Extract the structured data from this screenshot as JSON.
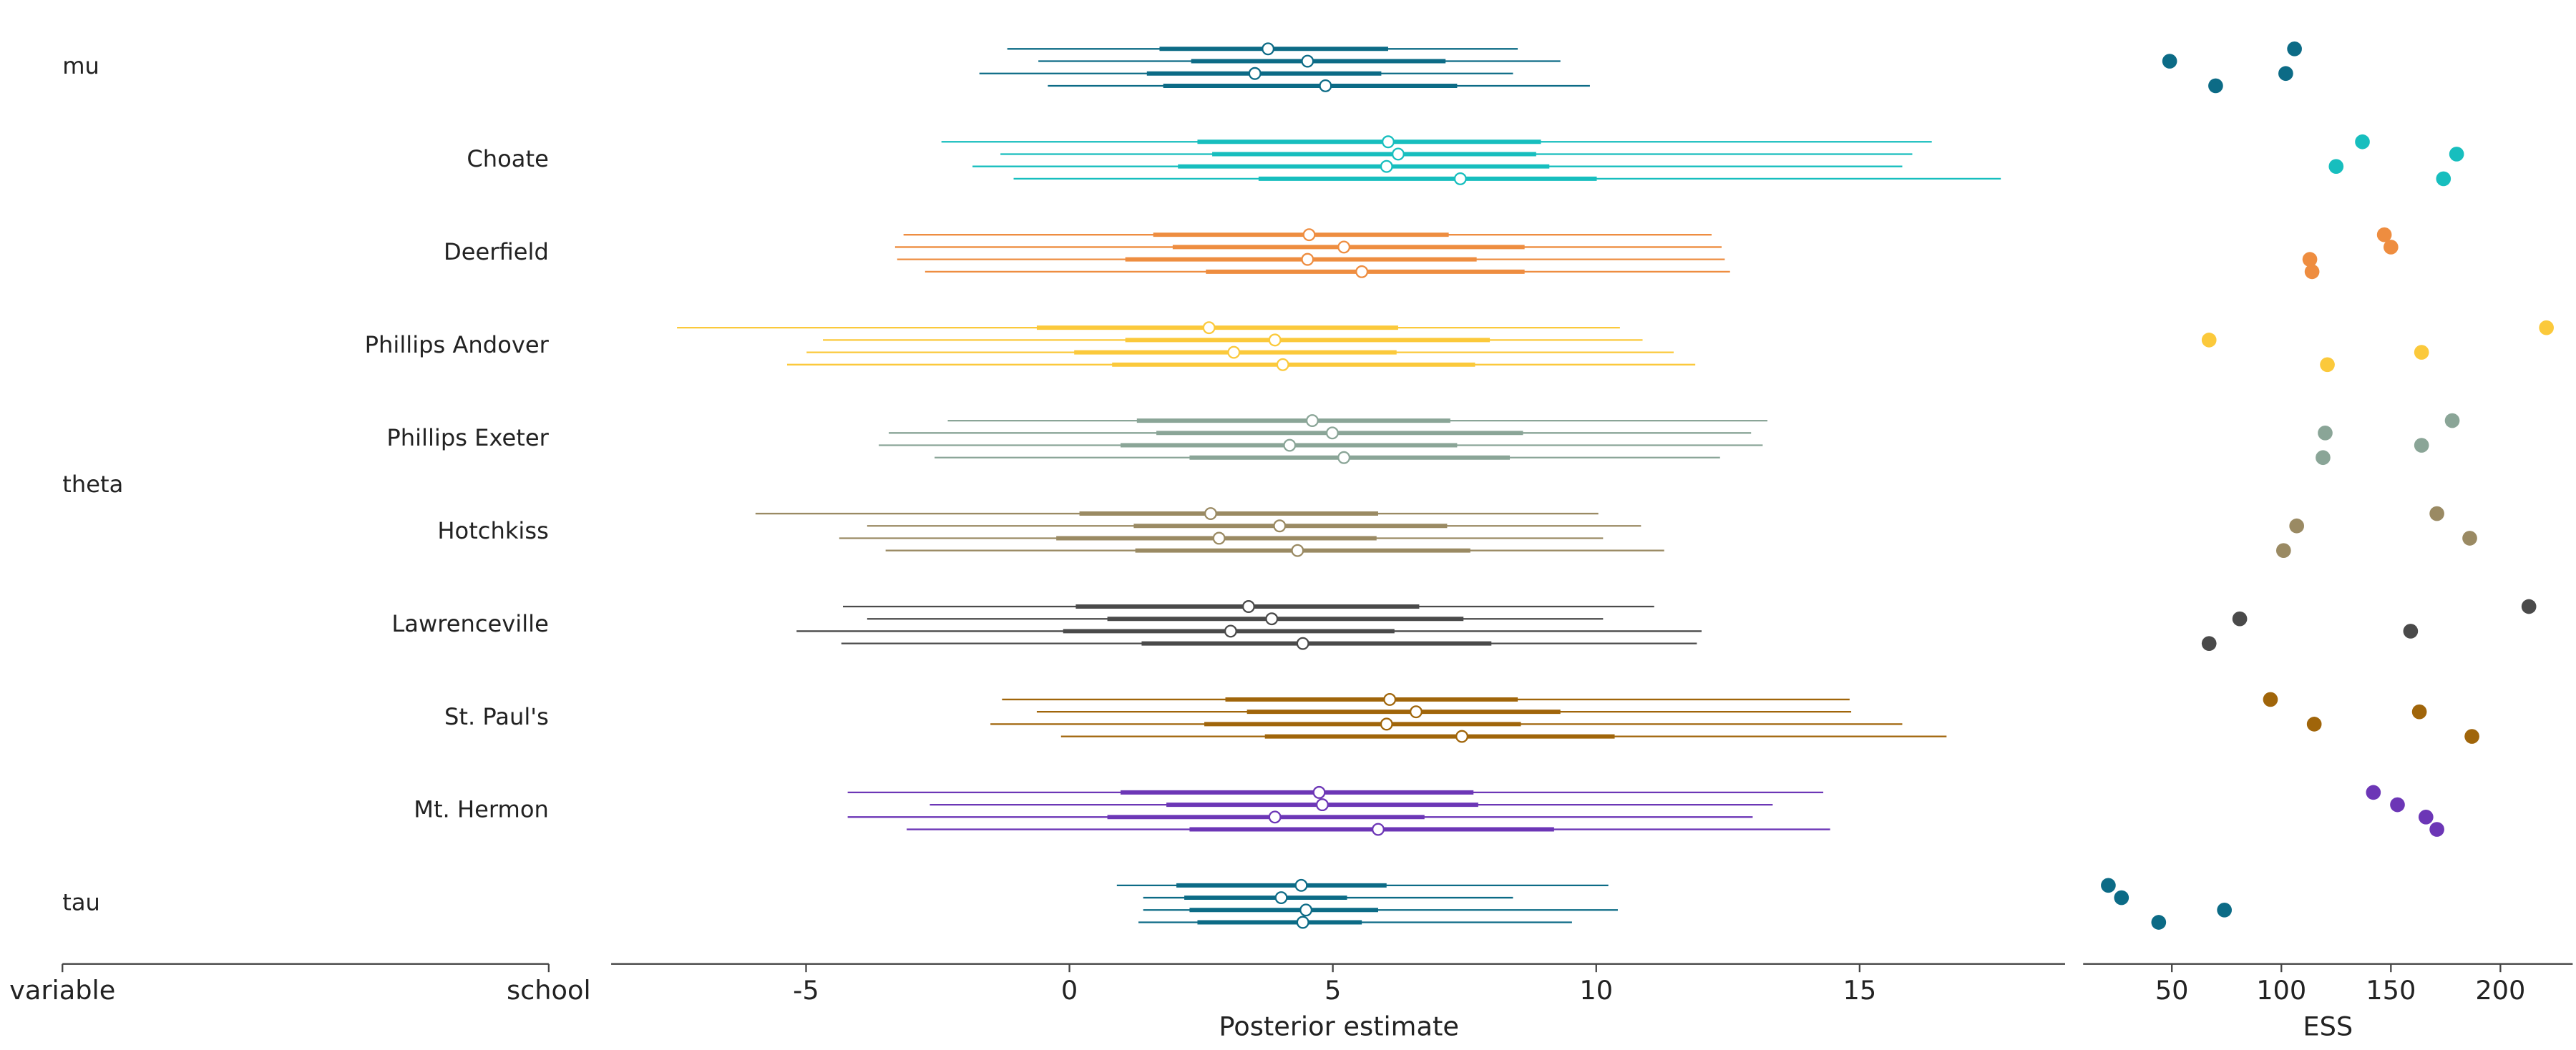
{
  "chart_data": {
    "type": "forest",
    "x_label": "Posterior estimate",
    "ess_label": "ESS",
    "column_headers": [
      "variable",
      "school"
    ],
    "xlim": [
      -8.7,
      18.9
    ],
    "xticks": [
      -5,
      0,
      5,
      10,
      15
    ],
    "ess_xlim": [
      9.5,
      233
    ],
    "ess_xticks": [
      50,
      100,
      150,
      200
    ],
    "variables": [
      {
        "name": "mu",
        "rows": [
          {
            "color": "#0c6b86",
            "chains": [
              {
                "median": 3.77,
                "hdi_50": [
                  1.71,
                  6.05
                ],
                "hdi_94": [
                  -1.18,
                  8.51
                ],
                "ess": 106
              },
              {
                "median": 4.52,
                "hdi_50": [
                  2.31,
                  7.14
                ],
                "hdi_94": [
                  -0.59,
                  9.32
                ],
                "ess": 49
              },
              {
                "median": 3.52,
                "hdi_50": [
                  1.47,
                  5.92
                ],
                "hdi_94": [
                  -1.71,
                  8.42
                ],
                "ess": 102
              },
              {
                "median": 4.86,
                "hdi_50": [
                  1.78,
                  7.36
                ],
                "hdi_94": [
                  -0.41,
                  9.88
                ],
                "ess": 70
              }
            ]
          }
        ]
      },
      {
        "name": "theta",
        "rows": [
          {
            "school": "Choate",
            "color": "#17bebe",
            "chains": [
              {
                "median": 6.05,
                "hdi_50": [
                  2.43,
                  8.95
                ],
                "hdi_94": [
                  -2.43,
                  16.37
                ],
                "ess": 137
              },
              {
                "median": 6.24,
                "hdi_50": [
                  2.71,
                  8.86
                ],
                "hdi_94": [
                  -1.31,
                  16.0
                ],
                "ess": 180
              },
              {
                "median": 6.02,
                "hdi_50": [
                  2.06,
                  9.11
                ],
                "hdi_94": [
                  -1.84,
                  15.81
                ],
                "ess": 125
              },
              {
                "median": 7.42,
                "hdi_50": [
                  3.59,
                  10.01
                ],
                "hdi_94": [
                  -1.06,
                  17.68
                ],
                "ess": 174
              }
            ]
          },
          {
            "school": "Deerfield",
            "color": "#ee8d40",
            "chains": [
              {
                "median": 4.55,
                "hdi_50": [
                  1.59,
                  7.2
                ],
                "hdi_94": [
                  -3.15,
                  12.19
                ],
                "ess": 147
              },
              {
                "median": 5.21,
                "hdi_50": [
                  1.96,
                  8.64
                ],
                "hdi_94": [
                  -3.31,
                  12.38
                ],
                "ess": 150
              },
              {
                "median": 4.52,
                "hdi_50": [
                  1.06,
                  7.73
                ],
                "hdi_94": [
                  -3.27,
                  12.44
                ],
                "ess": 113
              },
              {
                "median": 5.55,
                "hdi_50": [
                  2.59,
                  8.64
                ],
                "hdi_94": [
                  -2.74,
                  12.54
                ],
                "ess": 114
              }
            ]
          },
          {
            "school": "Phillips Andover",
            "color": "#fbc93b",
            "chains": [
              {
                "median": 2.65,
                "hdi_50": [
                  -0.62,
                  6.24
                ],
                "hdi_94": [
                  -7.45,
                  10.45
                ],
                "ess": 221
              },
              {
                "median": 3.9,
                "hdi_50": [
                  1.06,
                  7.98
                ],
                "hdi_94": [
                  -4.68,
                  10.88
                ],
                "ess": 67
              },
              {
                "median": 3.12,
                "hdi_50": [
                  0.09,
                  6.21
                ],
                "hdi_94": [
                  -4.99,
                  11.47
                ],
                "ess": 164
              },
              {
                "median": 4.05,
                "hdi_50": [
                  0.81,
                  7.7
                ],
                "hdi_94": [
                  -5.36,
                  11.88
                ],
                "ess": 121
              }
            ]
          },
          {
            "school": "Phillips Exeter",
            "color": "#8aa597",
            "chains": [
              {
                "median": 4.61,
                "hdi_50": [
                  1.28,
                  7.23
                ],
                "hdi_94": [
                  -2.31,
                  13.25
                ],
                "ess": 178
              },
              {
                "median": 4.99,
                "hdi_50": [
                  1.65,
                  8.61
                ],
                "hdi_94": [
                  -3.43,
                  12.94
                ],
                "ess": 120
              },
              {
                "median": 4.18,
                "hdi_50": [
                  0.97,
                  7.36
                ],
                "hdi_94": [
                  -3.62,
                  13.16
                ],
                "ess": 164
              },
              {
                "median": 5.21,
                "hdi_50": [
                  2.28,
                  8.36
                ],
                "hdi_94": [
                  -2.56,
                  12.35
                ],
                "ess": 119
              }
            ]
          },
          {
            "school": "Hotchkiss",
            "color": "#9a8a63",
            "chains": [
              {
                "median": 2.68,
                "hdi_50": [
                  0.19,
                  5.86
                ],
                "hdi_94": [
                  -5.96,
                  10.04
                ],
                "ess": 171
              },
              {
                "median": 3.99,
                "hdi_50": [
                  1.22,
                  7.17
                ],
                "hdi_94": [
                  -3.84,
                  10.85
                ],
                "ess": 107
              },
              {
                "median": 2.84,
                "hdi_50": [
                  -0.25,
                  5.83
                ],
                "hdi_94": [
                  -4.37,
                  10.13
                ],
                "ess": 186
              },
              {
                "median": 4.33,
                "hdi_50": [
                  1.25,
                  7.61
                ],
                "hdi_94": [
                  -3.49,
                  11.29
                ],
                "ess": 101
              }
            ]
          },
          {
            "school": "Lawrenceville",
            "color": "#4a4a4a",
            "chains": [
              {
                "median": 3.4,
                "hdi_50": [
                  0.12,
                  6.64
                ],
                "hdi_94": [
                  -4.3,
                  11.1
                ],
                "ess": 213
              },
              {
                "median": 3.84,
                "hdi_50": [
                  0.72,
                  7.48
                ],
                "hdi_94": [
                  -3.84,
                  10.13
                ],
                "ess": 81
              },
              {
                "median": 3.06,
                "hdi_50": [
                  -0.12,
                  6.17
                ],
                "hdi_94": [
                  -5.18,
                  12.0
                ],
                "ess": 159
              },
              {
                "median": 4.43,
                "hdi_50": [
                  1.37,
                  8.01
                ],
                "hdi_94": [
                  -4.33,
                  11.91
                ],
                "ess": 67
              }
            ]
          },
          {
            "school": "St. Paul's",
            "color": "#a0650a",
            "chains": [
              {
                "median": 6.08,
                "hdi_50": [
                  2.96,
                  8.51
                ],
                "hdi_94": [
                  -1.28,
                  14.81
                ],
                "ess": 95
              },
              {
                "median": 6.58,
                "hdi_50": [
                  3.37,
                  9.32
                ],
                "hdi_94": [
                  -0.62,
                  14.84
                ],
                "ess": 163
              },
              {
                "median": 6.02,
                "hdi_50": [
                  2.56,
                  8.57
                ],
                "hdi_94": [
                  -1.5,
                  15.81
                ],
                "ess": 115
              },
              {
                "median": 7.45,
                "hdi_50": [
                  3.71,
                  10.35
                ],
                "hdi_94": [
                  -0.16,
                  16.65
                ],
                "ess": 187
              }
            ]
          },
          {
            "school": "Mt. Hermon",
            "color": "#6c36b6",
            "chains": [
              {
                "median": 4.74,
                "hdi_50": [
                  0.97,
                  7.67
                ],
                "hdi_94": [
                  -4.21,
                  14.31
                ],
                "ess": 142
              },
              {
                "median": 4.8,
                "hdi_50": [
                  1.84,
                  7.76
                ],
                "hdi_94": [
                  -2.65,
                  13.35
                ],
                "ess": 153
              },
              {
                "median": 3.9,
                "hdi_50": [
                  0.72,
                  6.74
                ],
                "hdi_94": [
                  -4.21,
                  12.97
                ],
                "ess": 166
              },
              {
                "median": 5.86,
                "hdi_50": [
                  2.28,
                  9.2
                ],
                "hdi_94": [
                  -3.09,
                  14.44
                ],
                "ess": 171
              }
            ]
          }
        ]
      },
      {
        "name": "tau",
        "rows": [
          {
            "color": "#0c6b86",
            "chains": [
              {
                "median": 4.4,
                "hdi_50": [
                  2.03,
                  6.02
                ],
                "hdi_94": [
                  0.9,
                  10.23
                ],
                "ess": 21
              },
              {
                "median": 4.02,
                "hdi_50": [
                  2.18,
                  5.27
                ],
                "hdi_94": [
                  1.4,
                  8.42
                ],
                "ess": 27
              },
              {
                "median": 4.49,
                "hdi_50": [
                  2.28,
                  5.86
                ],
                "hdi_94": [
                  1.4,
                  10.41
                ],
                "ess": 74
              },
              {
                "median": 4.43,
                "hdi_50": [
                  2.43,
                  5.55
                ],
                "hdi_94": [
                  1.31,
                  9.54
                ],
                "ess": 44
              }
            ]
          }
        ]
      }
    ]
  }
}
